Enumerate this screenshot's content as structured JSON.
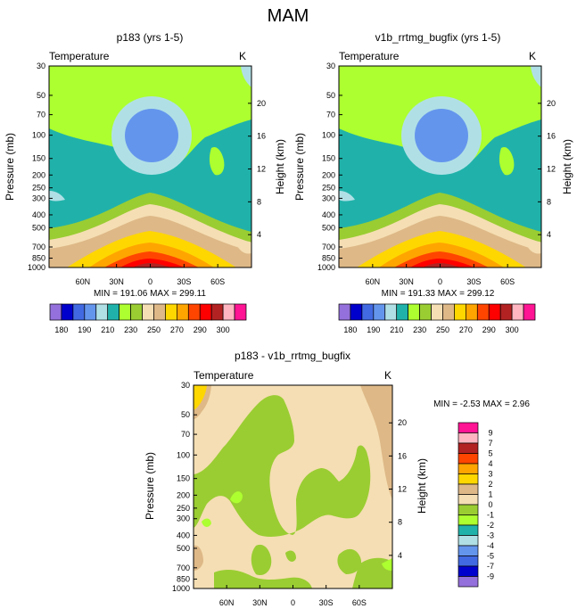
{
  "figure_title": "MAM",
  "chart_data": [
    {
      "type": "contour",
      "title": "p183 (yrs 1-5)",
      "left_label": "Temperature",
      "right_label": "K",
      "ylabel": "Pressure (mb)",
      "ylabel_right": "Height (km)",
      "pressure_ticks": [
        "30",
        "50",
        "70",
        "100",
        "150",
        "200",
        "250",
        "300",
        "400",
        "500",
        "700",
        "850",
        "1000"
      ],
      "height_ticks": [
        "20",
        "16",
        "12",
        "8",
        "4"
      ],
      "x_ticks": [
        "60N",
        "30N",
        "0",
        "30S",
        "60S"
      ],
      "min_max": "MIN = 191.06  MAX = 299.11",
      "colorbar_labels": [
        "180",
        "190",
        "210",
        "230",
        "250",
        "270",
        "290",
        "300"
      ],
      "colorbar_colors": [
        "#9370DB",
        "#0000CD",
        "#4169E1",
        "#6495ED",
        "#B0E0E6",
        "#20B2AA",
        "#ADFF2F",
        "#9ACD32",
        "#F5DEB3",
        "#DEB887",
        "#FFD700",
        "#FFA500",
        "#FF4500",
        "#FF0000",
        "#B22222",
        "#FFB6C1",
        "#FF1493"
      ]
    },
    {
      "type": "contour",
      "title": "v1b_rrtmg_bugfix (yrs 1-5)",
      "left_label": "Temperature",
      "right_label": "K",
      "ylabel": "Pressure (mb)",
      "ylabel_right": "Height (km)",
      "pressure_ticks": [
        "30",
        "50",
        "70",
        "100",
        "150",
        "200",
        "250",
        "300",
        "400",
        "500",
        "700",
        "850",
        "1000"
      ],
      "height_ticks": [
        "20",
        "16",
        "12",
        "8",
        "4"
      ],
      "x_ticks": [
        "60N",
        "30N",
        "0",
        "30S",
        "60S"
      ],
      "min_max": "MIN = 191.33  MAX = 299.12",
      "colorbar_labels": [
        "180",
        "190",
        "210",
        "230",
        "250",
        "270",
        "290",
        "300"
      ],
      "colorbar_colors": [
        "#9370DB",
        "#0000CD",
        "#4169E1",
        "#6495ED",
        "#B0E0E6",
        "#20B2AA",
        "#ADFF2F",
        "#9ACD32",
        "#F5DEB3",
        "#DEB887",
        "#FFD700",
        "#FFA500",
        "#FF4500",
        "#FF0000",
        "#B22222",
        "#FFB6C1",
        "#FF1493"
      ]
    },
    {
      "type": "contour",
      "title": "p183 - v1b_rrtmg_bugfix",
      "left_label": "Temperature",
      "right_label": "K",
      "ylabel": "Pressure (mb)",
      "ylabel_right": "Height (km)",
      "pressure_ticks": [
        "30",
        "50",
        "70",
        "100",
        "150",
        "200",
        "250",
        "300",
        "400",
        "500",
        "700",
        "850",
        "1000"
      ],
      "height_ticks": [
        "20",
        "16",
        "12",
        "8",
        "4"
      ],
      "x_ticks": [
        "60N",
        "30N",
        "0",
        "30S",
        "60S"
      ],
      "min_max": "MIN =  -2.53  MAX =   2.96",
      "colorbar_labels": [
        "9",
        "7",
        "5",
        "4",
        "3",
        "2",
        "1",
        "0",
        "-1",
        "-2",
        "-3",
        "-4",
        "-5",
        "-7",
        "-9"
      ],
      "colorbar_colors": [
        "#FF1493",
        "#FFB6C1",
        "#B22222",
        "#FF4500",
        "#FFA500",
        "#FFD700",
        "#DEB887",
        "#F5DEB3",
        "#9ACD32",
        "#ADFF2F",
        "#20B2AA",
        "#B0E0E6",
        "#6495ED",
        "#4169E1",
        "#0000CD",
        "#9370DB"
      ]
    }
  ]
}
